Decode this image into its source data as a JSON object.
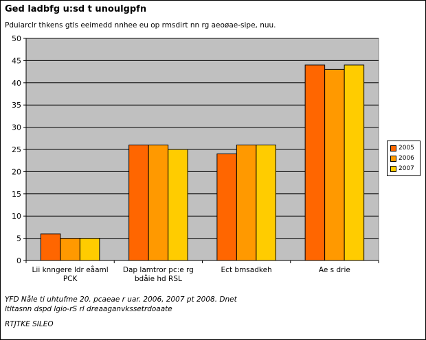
{
  "title": "Ged ladbfg u:sd t unoulgpfn",
  "subtitle": "Pduiarclr thkens gtls eeimedd nnhee eu op rmsdirt nn rg aeoøae-sipe, nuu.",
  "source_lines": [
    "YFD Nåle ti uhtufme 20. pcaeae r uar. 2006, 2007 pt 2008. Dnet",
    "ltltasnn dspd lgio-rS rl dreaaganvkssetrdoaate"
  ],
  "footer": "RTJTKE SILEO",
  "colors": {
    "plot_bg": "#C0C0C0",
    "series": [
      "#FF6600",
      "#FF9900",
      "#FFCC00"
    ]
  },
  "chart_data": {
    "type": "bar",
    "categories": [
      [
        "Lii knngere ldr eåaml",
        "PCK"
      ],
      [
        "Dap lamtror pc:e rg",
        "bdåie hd RSL"
      ],
      [
        "Ect bmsadkeh"
      ],
      [
        "Ae s drie"
      ]
    ],
    "series": [
      {
        "name": "2005",
        "values": [
          6,
          26,
          24,
          44
        ]
      },
      {
        "name": "2006",
        "values": [
          5,
          26,
          26,
          43
        ]
      },
      {
        "name": "2007",
        "values": [
          5,
          25,
          26,
          44
        ]
      }
    ],
    "ylim": [
      0,
      50
    ],
    "yticks": [
      0,
      5,
      10,
      15,
      20,
      25,
      30,
      35,
      40,
      45,
      50
    ],
    "grid": true,
    "legend_position": "right"
  }
}
